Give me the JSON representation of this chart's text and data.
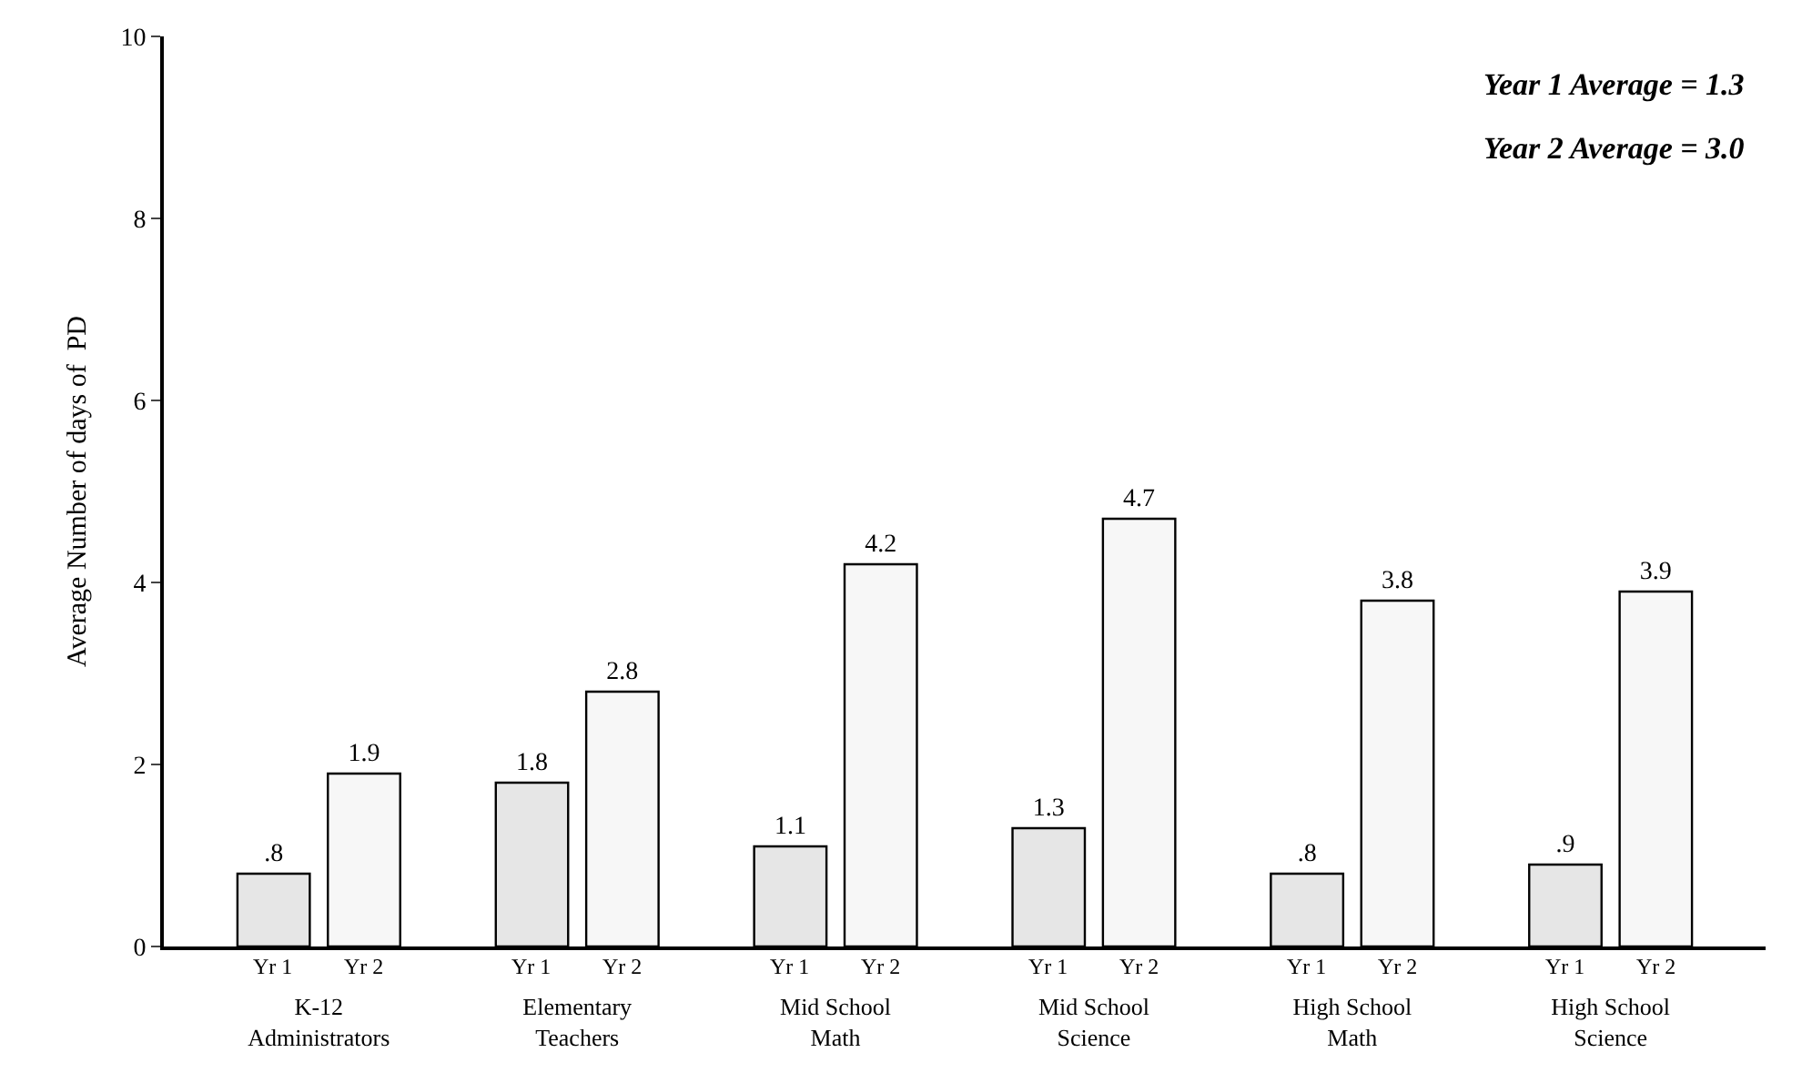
{
  "chart_data": {
    "type": "bar",
    "ylabel": "Average Number of days of  PD",
    "categories": [
      "K-12\nAdministrators",
      "Elementary\nTeachers",
      "Mid School\nMath",
      "Mid School\nScience",
      "High School\nMath",
      "High School\nScience"
    ],
    "series": [
      {
        "name": "Yr 1",
        "color": "#e6e6e6",
        "values": [
          0.8,
          1.8,
          1.1,
          1.3,
          0.8,
          0.9
        ],
        "value_labels": [
          ".8",
          "1.8",
          "1.1",
          "1.3",
          ".8",
          ".9"
        ]
      },
      {
        "name": "Yr 2",
        "color": "#f7f7f7",
        "values": [
          1.9,
          2.8,
          4.2,
          4.7,
          3.8,
          3.9
        ],
        "value_labels": [
          "1.9",
          "2.8",
          "4.2",
          "4.7",
          "3.8",
          "3.9"
        ]
      }
    ],
    "ylim": [
      0,
      10
    ],
    "yticks": [
      0,
      2,
      4,
      6,
      8,
      10
    ],
    "legend": false,
    "annotations": [
      "Year 1 Average = 1.3",
      "Year 2 Average = 3.0"
    ]
  }
}
